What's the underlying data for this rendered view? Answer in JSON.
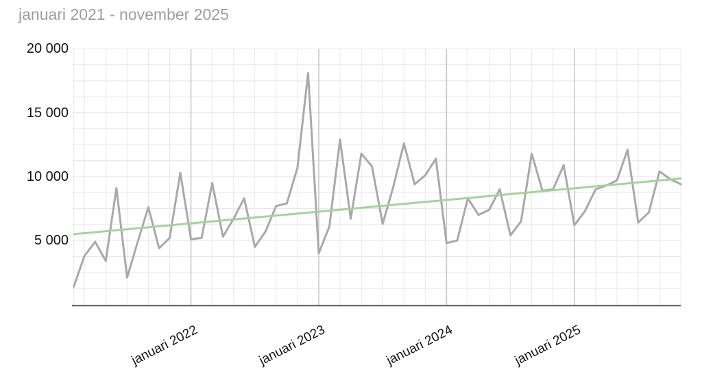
{
  "title": "januari 2021 - november 2025",
  "colors": {
    "background": "#ffffff",
    "title_text": "#9e9e9e",
    "tick_text": "#131313",
    "grid_minor": "#e8e8e8",
    "grid_january": "#c6c6c6",
    "axis_line": "#565656",
    "series_line": "#a9a9a9",
    "trendline": "#a8d19f"
  },
  "chart_data": {
    "type": "line",
    "title": "januari 2021 - november 2025",
    "legend": "none",
    "grid": true,
    "x": [
      "januari 2021",
      "februari 2021",
      "mars 2021",
      "april 2021",
      "maj 2021",
      "juni 2021",
      "juli 2021",
      "augusti 2021",
      "september 2021",
      "oktober 2021",
      "november 2021",
      "december 2021",
      "januari 2022",
      "februari 2022",
      "mars 2022",
      "april 2022",
      "maj 2022",
      "juni 2022",
      "juli 2022",
      "augusti 2022",
      "september 2022",
      "oktober 2022",
      "november 2022",
      "december 2022",
      "januari 2023",
      "februari 2023",
      "mars 2023",
      "april 2023",
      "maj 2023",
      "juni 2023",
      "juli 2023",
      "augusti 2023",
      "september 2023",
      "oktober 2023",
      "november 2023",
      "december 2023",
      "januari 2024",
      "februari 2024",
      "mars 2024",
      "april 2024",
      "maj 2024",
      "juni 2024",
      "juli 2024",
      "augusti 2024",
      "september 2024",
      "oktober 2024",
      "november 2024",
      "december 2024",
      "januari 2025",
      "februari 2025",
      "mars 2025",
      "april 2025",
      "maj 2025",
      "juni 2025",
      "juli 2025",
      "augusti 2025",
      "september 2025",
      "oktober 2025",
      "november 2025"
    ],
    "series": [
      {
        "values": [
          null,
          1400,
          3800,
          4900,
          3400,
          9100,
          2100,
          4900,
          7600,
          4400,
          5200,
          10300,
          5100,
          5200,
          9500,
          5300,
          6700,
          8300,
          4500,
          5700,
          7700,
          7900,
          10700,
          18100,
          4000,
          6100,
          12900,
          6700,
          11800,
          10800,
          6300,
          9200,
          12600,
          9400,
          10100,
          11400,
          4800,
          5000,
          8300,
          7000,
          7400,
          9000,
          5400,
          6500,
          11800,
          8900,
          9000,
          10900,
          6200,
          7300,
          9000,
          9300,
          9700,
          12100,
          6400,
          7200,
          10400,
          9800,
          9400
        ]
      }
    ],
    "trendline": {
      "type": "linear",
      "start_value": 5500,
      "end_value": 9850
    },
    "y_axis": {
      "min": 0,
      "max": 20000,
      "major_step": 5000,
      "minor_step": 1250,
      "ticks": [
        {
          "value": 20000,
          "label": "20 000"
        },
        {
          "value": 15000,
          "label": "15 000"
        },
        {
          "value": 10000,
          "label": "10 000"
        },
        {
          "value": 5000,
          "label": "5 000"
        }
      ]
    },
    "x_axis": {
      "tick_labels": [
        "januari 2022",
        "januari 2023",
        "januari 2024",
        "januari 2025"
      ],
      "tick_month_indices": [
        12,
        24,
        36,
        48
      ],
      "gridline_every_months": 2
    }
  }
}
